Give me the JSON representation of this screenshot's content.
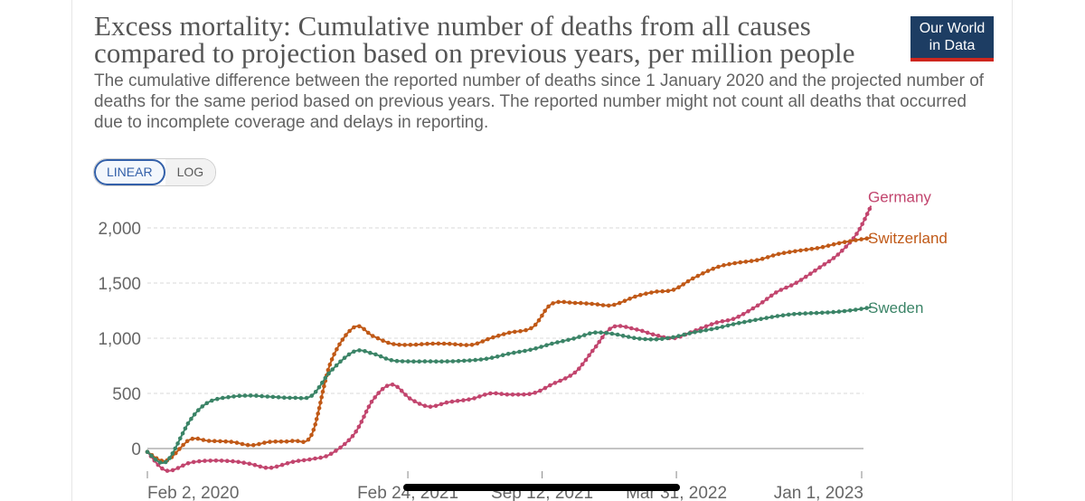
{
  "header": {
    "title": "Excess mortality: Cumulative number of deaths from all causes compared to projection based on previous years, per million people",
    "subtitle": "The cumulative difference between the reported number of deaths since 1 January 2020 and the projected number of deaths for the same period based on previous years. The reported number might not count all deaths that occurred due to incomplete coverage and delays in reporting.",
    "logo_line1": "Our World",
    "logo_line2": "in Data"
  },
  "controls": {
    "linear_label": "LINEAR",
    "log_label": "LOG",
    "selected": "LINEAR"
  },
  "colors": {
    "germany": "#c2456e",
    "switzerland": "#c05917",
    "sweden": "#3b8467",
    "grid": "#d8d8d8",
    "axis": "#888888",
    "logo_bg": "#1d3d63",
    "logo_accent": "#ce261e"
  },
  "chart_data": {
    "type": "line",
    "ylim": [
      -150,
      2250
    ],
    "y_ticks": [
      0,
      500,
      1000,
      1500,
      2000
    ],
    "y_tick_labels": [
      "0",
      "500",
      "1,000",
      "1,500",
      "2,000"
    ],
    "x_tick_labels": [
      "Feb 2, 2020",
      "Feb 24, 2021",
      "Sep 12, 2021",
      "Mar 31, 2022",
      "Jan 1, 2023"
    ],
    "x_ticks": [
      "2020-02-02",
      "2021-02-24",
      "2021-09-12",
      "2022-03-31",
      "2023-01-01"
    ],
    "grid": true,
    "legend": "end-labels",
    "x": [
      "2020-02-02",
      "2020-03-01",
      "2020-04-05",
      "2020-05-03",
      "2020-06-07",
      "2020-07-05",
      "2020-08-02",
      "2020-09-06",
      "2020-10-04",
      "2020-11-01",
      "2020-12-06",
      "2021-01-03",
      "2021-01-31",
      "2021-02-28",
      "2021-03-28",
      "2021-04-25",
      "2021-05-30",
      "2021-06-27",
      "2021-07-25",
      "2021-08-29",
      "2021-09-26",
      "2021-10-31",
      "2021-11-28",
      "2021-12-26",
      "2022-01-30",
      "2022-02-27",
      "2022-03-27",
      "2022-04-24",
      "2022-05-29",
      "2022-06-26",
      "2022-07-31",
      "2022-08-28",
      "2022-09-25",
      "2022-10-30",
      "2022-11-27",
      "2022-12-25",
      "2023-01-15"
    ],
    "series": [
      {
        "name": "Germany",
        "values": [
          -30,
          -200,
          -130,
          -110,
          -115,
          -140,
          -175,
          -120,
          -95,
          -50,
          130,
          440,
          580,
          450,
          380,
          420,
          450,
          500,
          490,
          500,
          580,
          690,
          900,
          1100,
          1080,
          1030,
          1000,
          1060,
          1140,
          1180,
          1300,
          1420,
          1500,
          1640,
          1760,
          1950,
          2200
        ]
      },
      {
        "name": "Switzerland",
        "values": [
          -30,
          -110,
          80,
          70,
          60,
          30,
          60,
          70,
          130,
          780,
          1100,
          1020,
          950,
          940,
          950,
          950,
          940,
          1000,
          1050,
          1100,
          1310,
          1320,
          1310,
          1300,
          1380,
          1420,
          1440,
          1540,
          1640,
          1680,
          1710,
          1760,
          1790,
          1820,
          1860,
          1890,
          1910
        ]
      },
      {
        "name": "Sweden",
        "values": [
          -30,
          -120,
          250,
          420,
          470,
          480,
          470,
          460,
          480,
          700,
          880,
          860,
          800,
          790,
          790,
          790,
          800,
          820,
          860,
          900,
          950,
          1000,
          1050,
          1040,
          1000,
          990,
          1010,
          1050,
          1090,
          1130,
          1170,
          1200,
          1220,
          1230,
          1240,
          1260,
          1280
        ]
      }
    ]
  }
}
